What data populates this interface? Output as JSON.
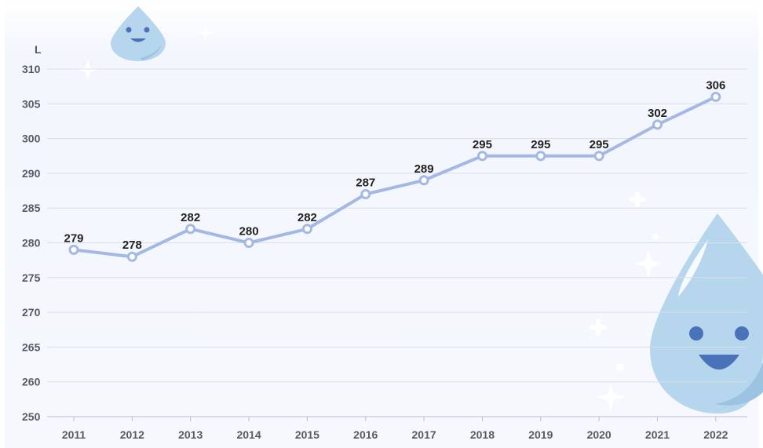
{
  "chart_data": {
    "type": "line",
    "title": "",
    "xlabel": "",
    "ylabel": "L",
    "x": [
      "2011",
      "2012",
      "2013",
      "2014",
      "2015",
      "2016",
      "2017",
      "2018",
      "2019",
      "2020",
      "2021",
      "2022"
    ],
    "series": [
      {
        "values": [
          279,
          278,
          282,
          280,
          282,
          287,
          289,
          295,
          295,
          295,
          302,
          306
        ]
      }
    ],
    "y_ticks": [
      310,
      305,
      300,
      290,
      285,
      280,
      275,
      270,
      265,
      260,
      250
    ],
    "grid": true,
    "colors": {
      "line": "#a3b8e4",
      "grid": "#d9dee8",
      "background": "#f4f7fd",
      "drop": "#b6d6ee",
      "drop_face": "#4a72b8"
    },
    "decorations": [
      "water-drop-icon",
      "water-drop-icon",
      "sparkle-icon"
    ]
  }
}
